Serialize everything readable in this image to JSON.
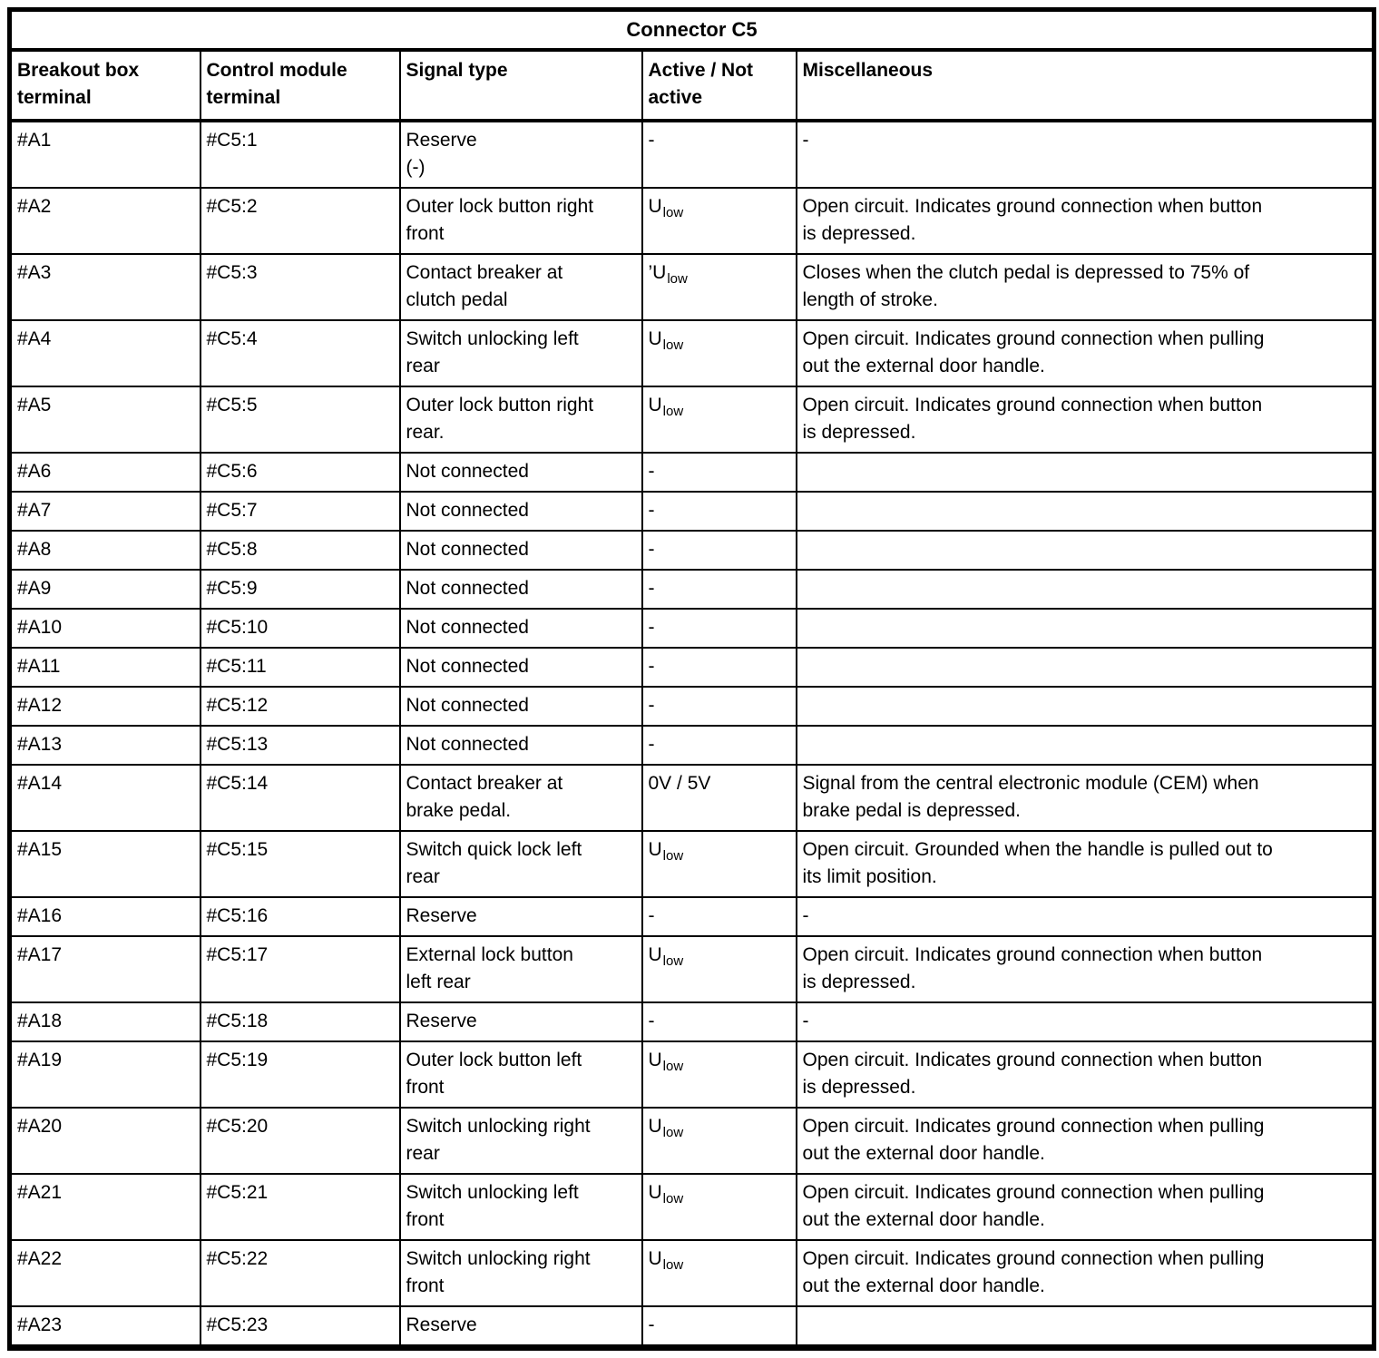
{
  "table": {
    "title": "Connector C5",
    "columns": [
      "Breakout box\nterminal",
      "Control module\nterminal",
      "Signal type",
      "Active / Not\nactive",
      "Miscellaneous"
    ],
    "rows": [
      {
        "breakout": "#A1",
        "module": "#C5:1",
        "signal": "Reserve\n(-)",
        "active_main": "-",
        "active_sub": "",
        "misc": "-"
      },
      {
        "breakout": "#A2",
        "module": "#C5:2",
        "signal": "Outer lock button right\nfront",
        "active_main": "U",
        "active_sub": "low",
        "misc": "Open circuit. Indicates ground connection when button\nis depressed."
      },
      {
        "breakout": "#A3",
        "module": "#C5:3",
        "signal": "Contact breaker at\nclutch pedal",
        "active_main": "’U",
        "active_sub": "low",
        "misc": "Closes when the clutch pedal is depressed to 75% of\nlength of stroke."
      },
      {
        "breakout": "#A4",
        "module": "#C5:4",
        "signal": "Switch unlocking left\nrear",
        "active_main": "U",
        "active_sub": "low",
        "misc": "Open circuit. Indicates ground connection when pulling\nout the external door handle."
      },
      {
        "breakout": "#A5",
        "module": "#C5:5",
        "signal": "Outer lock button right\nrear.",
        "active_main": "U",
        "active_sub": "low",
        "misc": "Open circuit. Indicates ground connection when button\nis depressed."
      },
      {
        "breakout": "#A6",
        "module": "#C5:6",
        "signal": "Not connected",
        "active_main": "-",
        "active_sub": "",
        "misc": ""
      },
      {
        "breakout": "#A7",
        "module": "#C5:7",
        "signal": "Not connected",
        "active_main": "-",
        "active_sub": "",
        "misc": ""
      },
      {
        "breakout": "#A8",
        "module": "#C5:8",
        "signal": "Not connected",
        "active_main": "-",
        "active_sub": "",
        "misc": ""
      },
      {
        "breakout": "#A9",
        "module": "#C5:9",
        "signal": "Not connected",
        "active_main": "-",
        "active_sub": "",
        "misc": ""
      },
      {
        "breakout": "#A10",
        "module": "#C5:10",
        "signal": "Not connected",
        "active_main": "-",
        "active_sub": "",
        "misc": ""
      },
      {
        "breakout": "#A11",
        "module": "#C5:11",
        "signal": "Not connected",
        "active_main": "-",
        "active_sub": "",
        "misc": ""
      },
      {
        "breakout": "#A12",
        "module": "#C5:12",
        "signal": "Not connected",
        "active_main": "-",
        "active_sub": "",
        "misc": ""
      },
      {
        "breakout": "#A13",
        "module": "#C5:13",
        "signal": "Not connected",
        "active_main": "-",
        "active_sub": "",
        "misc": ""
      },
      {
        "breakout": "#A14",
        "module": "#C5:14",
        "signal": "Contact breaker at\nbrake pedal.",
        "active_main": "0V / 5V",
        "active_sub": "",
        "misc": "Signal from the central electronic module (CEM) when\nbrake pedal is depressed."
      },
      {
        "breakout": "#A15",
        "module": "#C5:15",
        "signal": "Switch quick lock left\nrear",
        "active_main": "U",
        "active_sub": "low",
        "misc": "Open circuit. Grounded when the handle is pulled out to\nits limit position."
      },
      {
        "breakout": "#A16",
        "module": "#C5:16",
        "signal": "Reserve",
        "active_main": "-",
        "active_sub": "",
        "misc": "-"
      },
      {
        "breakout": "#A17",
        "module": "#C5:17",
        "signal": "External lock button\nleft rear",
        "active_main": "U",
        "active_sub": "low",
        "misc": "Open circuit. Indicates ground connection when button\nis depressed."
      },
      {
        "breakout": "#A18",
        "module": "#C5:18",
        "signal": "Reserve",
        "active_main": "-",
        "active_sub": "",
        "misc": "-"
      },
      {
        "breakout": "#A19",
        "module": "#C5:19",
        "signal": "Outer lock button left\nfront",
        "active_main": "U",
        "active_sub": "low",
        "misc": "Open circuit. Indicates ground connection when button\nis depressed."
      },
      {
        "breakout": "#A20",
        "module": "#C5:20",
        "signal": "Switch unlocking right\nrear",
        "active_main": "U",
        "active_sub": "low",
        "misc": "Open circuit. Indicates ground connection when pulling\nout the external door handle."
      },
      {
        "breakout": "#A21",
        "module": "#C5:21",
        "signal": "Switch unlocking left\nfront",
        "active_main": "U",
        "active_sub": "low",
        "misc": "Open circuit. Indicates ground connection when pulling\nout the external door handle."
      },
      {
        "breakout": "#A22",
        "module": "#C5:22",
        "signal": "Switch unlocking right\nfront",
        "active_main": "U",
        "active_sub": "low",
        "misc": "Open circuit. Indicates ground connection when pulling\nout the external door handle."
      },
      {
        "breakout": "#A23",
        "module": "#C5:23",
        "signal": "Reserve",
        "active_main": "-",
        "active_sub": "",
        "misc": ""
      }
    ]
  }
}
